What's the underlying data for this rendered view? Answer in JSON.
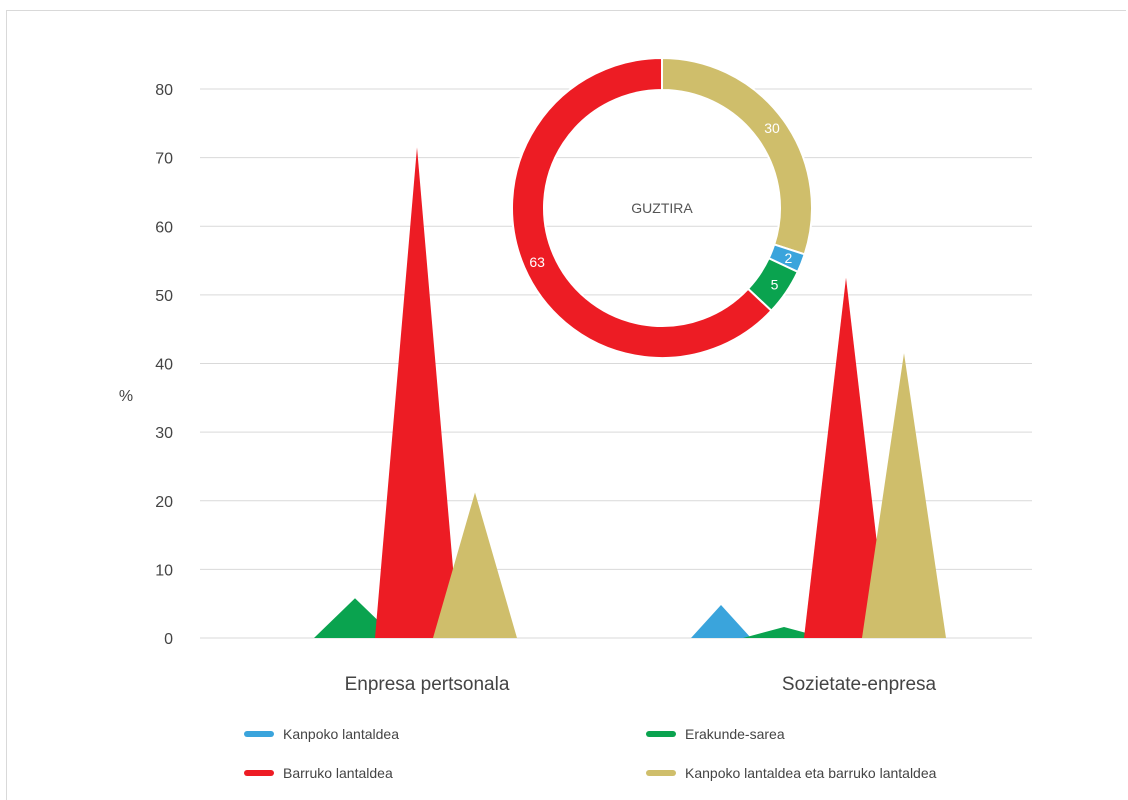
{
  "chart_data": [
    {
      "type": "area",
      "ylabel": "%",
      "ylim": [
        0,
        80
      ],
      "yticks": [
        0,
        10,
        20,
        30,
        40,
        50,
        60,
        70,
        80
      ],
      "grid": true,
      "categories": [
        "Enpresa pertsonala",
        "Sozietate-enpresa"
      ],
      "series": [
        {
          "name": "Kanpoko lantaldea",
          "color": "#3aa4dc",
          "values": [
            0,
            4.8
          ]
        },
        {
          "name": "Erakunde-sarea",
          "color": "#0aa34f",
          "values": [
            5.8,
            1.6
          ]
        },
        {
          "name": "Barruko lantaldea",
          "color": "#ed1c24",
          "values": [
            71.5,
            52.5
          ]
        },
        {
          "name": "Kanpoko lantaldea eta barruko lantaldea",
          "color": "#cfbe6b",
          "values": [
            21.2,
            41.5
          ]
        }
      ],
      "legend_position": "bottom"
    },
    {
      "type": "pie",
      "center_label": "GUZTIRA",
      "slices": [
        {
          "label": "Kanpoko lantaldea eta barruko lantaldea",
          "value": 30,
          "color": "#cfbe6b"
        },
        {
          "label": "Kanpoko lantaldea",
          "value": 2,
          "color": "#3aa4dc"
        },
        {
          "label": "Erakunde-sarea",
          "value": 5,
          "color": "#0aa34f"
        },
        {
          "label": "Barruko lantaldea",
          "value": 63,
          "color": "#ed1c24"
        }
      ]
    }
  ]
}
